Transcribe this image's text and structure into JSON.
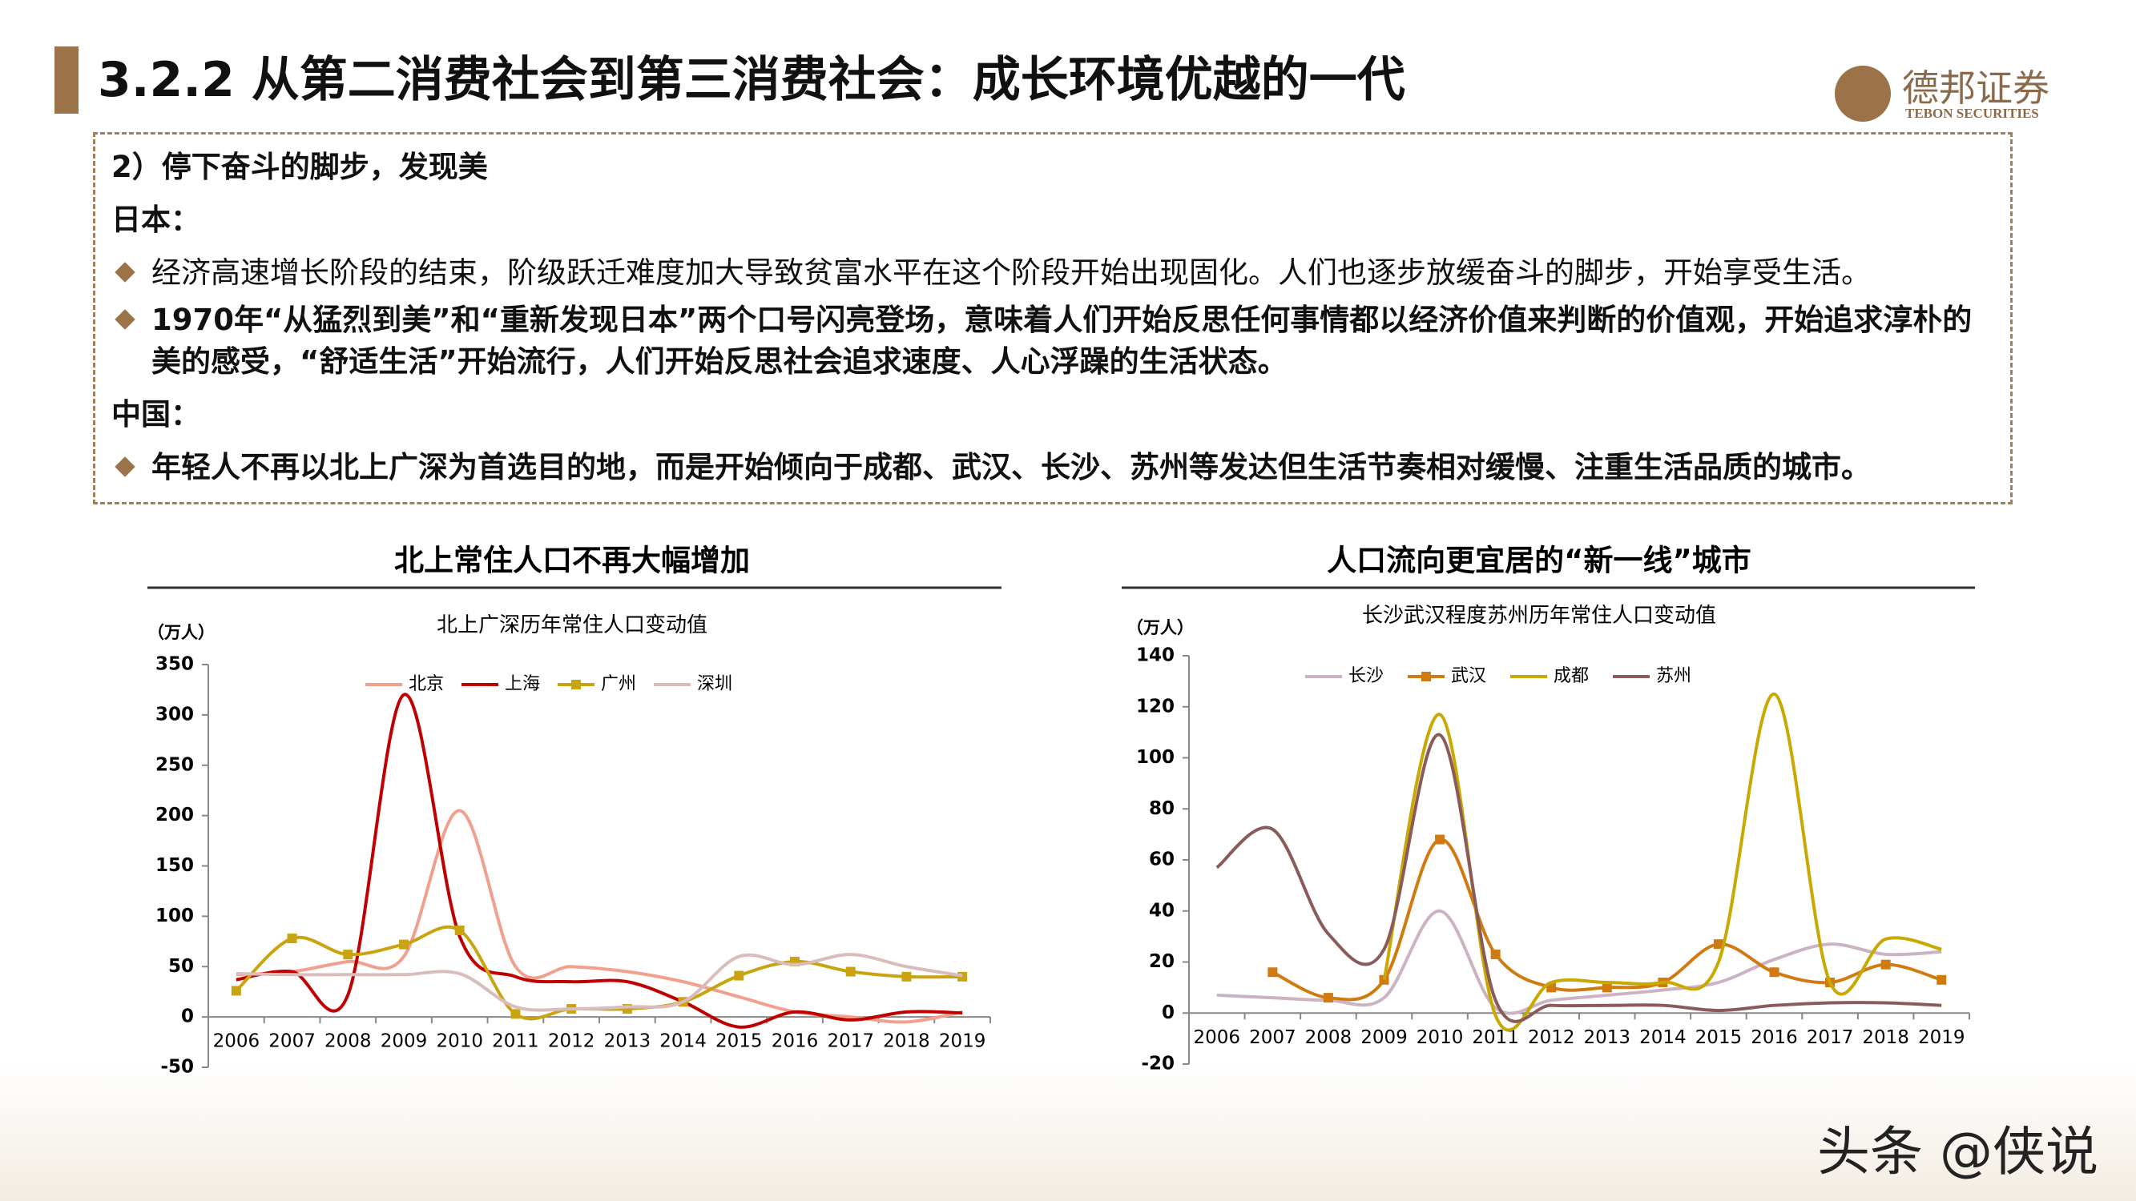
{
  "header": {
    "title": "3.2.2 从第二消费社会到第三消费社会：成长环境优越的一代",
    "logo": "德邦证券",
    "logo_en": "TEBON SECURITIES"
  },
  "box": {
    "heading": "2）停下奋斗的脚步，发现美",
    "sections": [
      {
        "label": "日本：",
        "bullets": [
          "经济高速增长阶段的结束，阶级跃迁难度加大导致贫富水平在这个阶段开始出现固化。人们也逐步放缓奋斗的脚步，开始享受生活。",
          "1970年“从猛烈到美”和“重新发现日本”两个口号闪亮登场，意味着人们开始反思任何事情都以经济价值来判断的价值观，开始追求淳朴的美的感受，“舒适生活”开始流行，人们开始反思社会追求速度、人心浮躁的生活状态。"
        ]
      },
      {
        "label": "中国：",
        "bullets": [
          "年轻人不再以北上广深为首选目的地，而是开始倾向于成都、武汉、长沙、苏州等发达但生活节奏相对缓慢、注重生活品质的城市。"
        ]
      }
    ]
  },
  "chart_data": [
    {
      "type": "line",
      "title": "北上常住人口不再大幅增加",
      "subtitle": "北上广深历年常住人口变动值",
      "unit": "（万人）",
      "categories": [
        "2006",
        "2007",
        "2008",
        "2009",
        "2010",
        "2011",
        "2012",
        "2013",
        "2014",
        "2015",
        "2016",
        "2017",
        "2018",
        "2019"
      ],
      "series": [
        {
          "name": "北京",
          "color": "#f2a08e",
          "values": [
            42,
            45,
            55,
            60,
            205,
            50,
            50,
            45,
            35,
            20,
            5,
            0,
            -5,
            5
          ]
        },
        {
          "name": "上海",
          "color": "#c00000",
          "values": [
            37,
            45,
            22,
            320,
            80,
            40,
            35,
            35,
            15,
            -10,
            5,
            -3,
            5,
            4
          ]
        },
        {
          "name": "广州",
          "color": "#c9a410",
          "marker": "square",
          "values": [
            26,
            78,
            62,
            72,
            86,
            3,
            8,
            8,
            15,
            41,
            55,
            45,
            40,
            40
          ]
        },
        {
          "name": "深圳",
          "color": "#d9bcbc",
          "values": [
            43,
            42,
            42,
            42,
            43,
            10,
            8,
            10,
            15,
            60,
            52,
            62,
            50,
            41
          ]
        }
      ],
      "ylim": [
        -50,
        350
      ],
      "yticks": [
        -50,
        0,
        50,
        100,
        150,
        200,
        250,
        300,
        350
      ]
    },
    {
      "type": "line",
      "title": "人口流向更宜居的“新一线”城市",
      "subtitle": "长沙武汉程度苏州历年常住人口变动值",
      "unit": "（万人）",
      "categories": [
        "2006",
        "2007",
        "2008",
        "2009",
        "2010",
        "2011",
        "2012",
        "2013",
        "2014",
        "2015",
        "2016",
        "2017",
        "2018",
        "2019"
      ],
      "series": [
        {
          "name": "长沙",
          "color": "#cbb3c3",
          "values": [
            7,
            6,
            5,
            6,
            40,
            2,
            5,
            7,
            9,
            12,
            21,
            27,
            23,
            24
          ]
        },
        {
          "name": "武汉",
          "color": "#d07a10",
          "marker": "square",
          "values": [
            null,
            16,
            6,
            13,
            68,
            23,
            10,
            10,
            12,
            27,
            16,
            12,
            19,
            13
          ]
        },
        {
          "name": "成都",
          "color": "#c9a800",
          "values": [
            null,
            null,
            null,
            13,
            117,
            -1,
            12,
            12,
            12,
            20,
            125,
            12,
            29,
            25
          ]
        },
        {
          "name": "苏州",
          "color": "#8b5a5a",
          "values": [
            57,
            72,
            31,
            25,
            109,
            5,
            3,
            3,
            3,
            1,
            3,
            4,
            4,
            3
          ]
        }
      ],
      "ylim": [
        -20,
        140
      ],
      "yticks": [
        -20,
        0,
        20,
        40,
        60,
        80,
        100,
        120,
        140
      ]
    }
  ],
  "watermark": "头条 @侠说"
}
